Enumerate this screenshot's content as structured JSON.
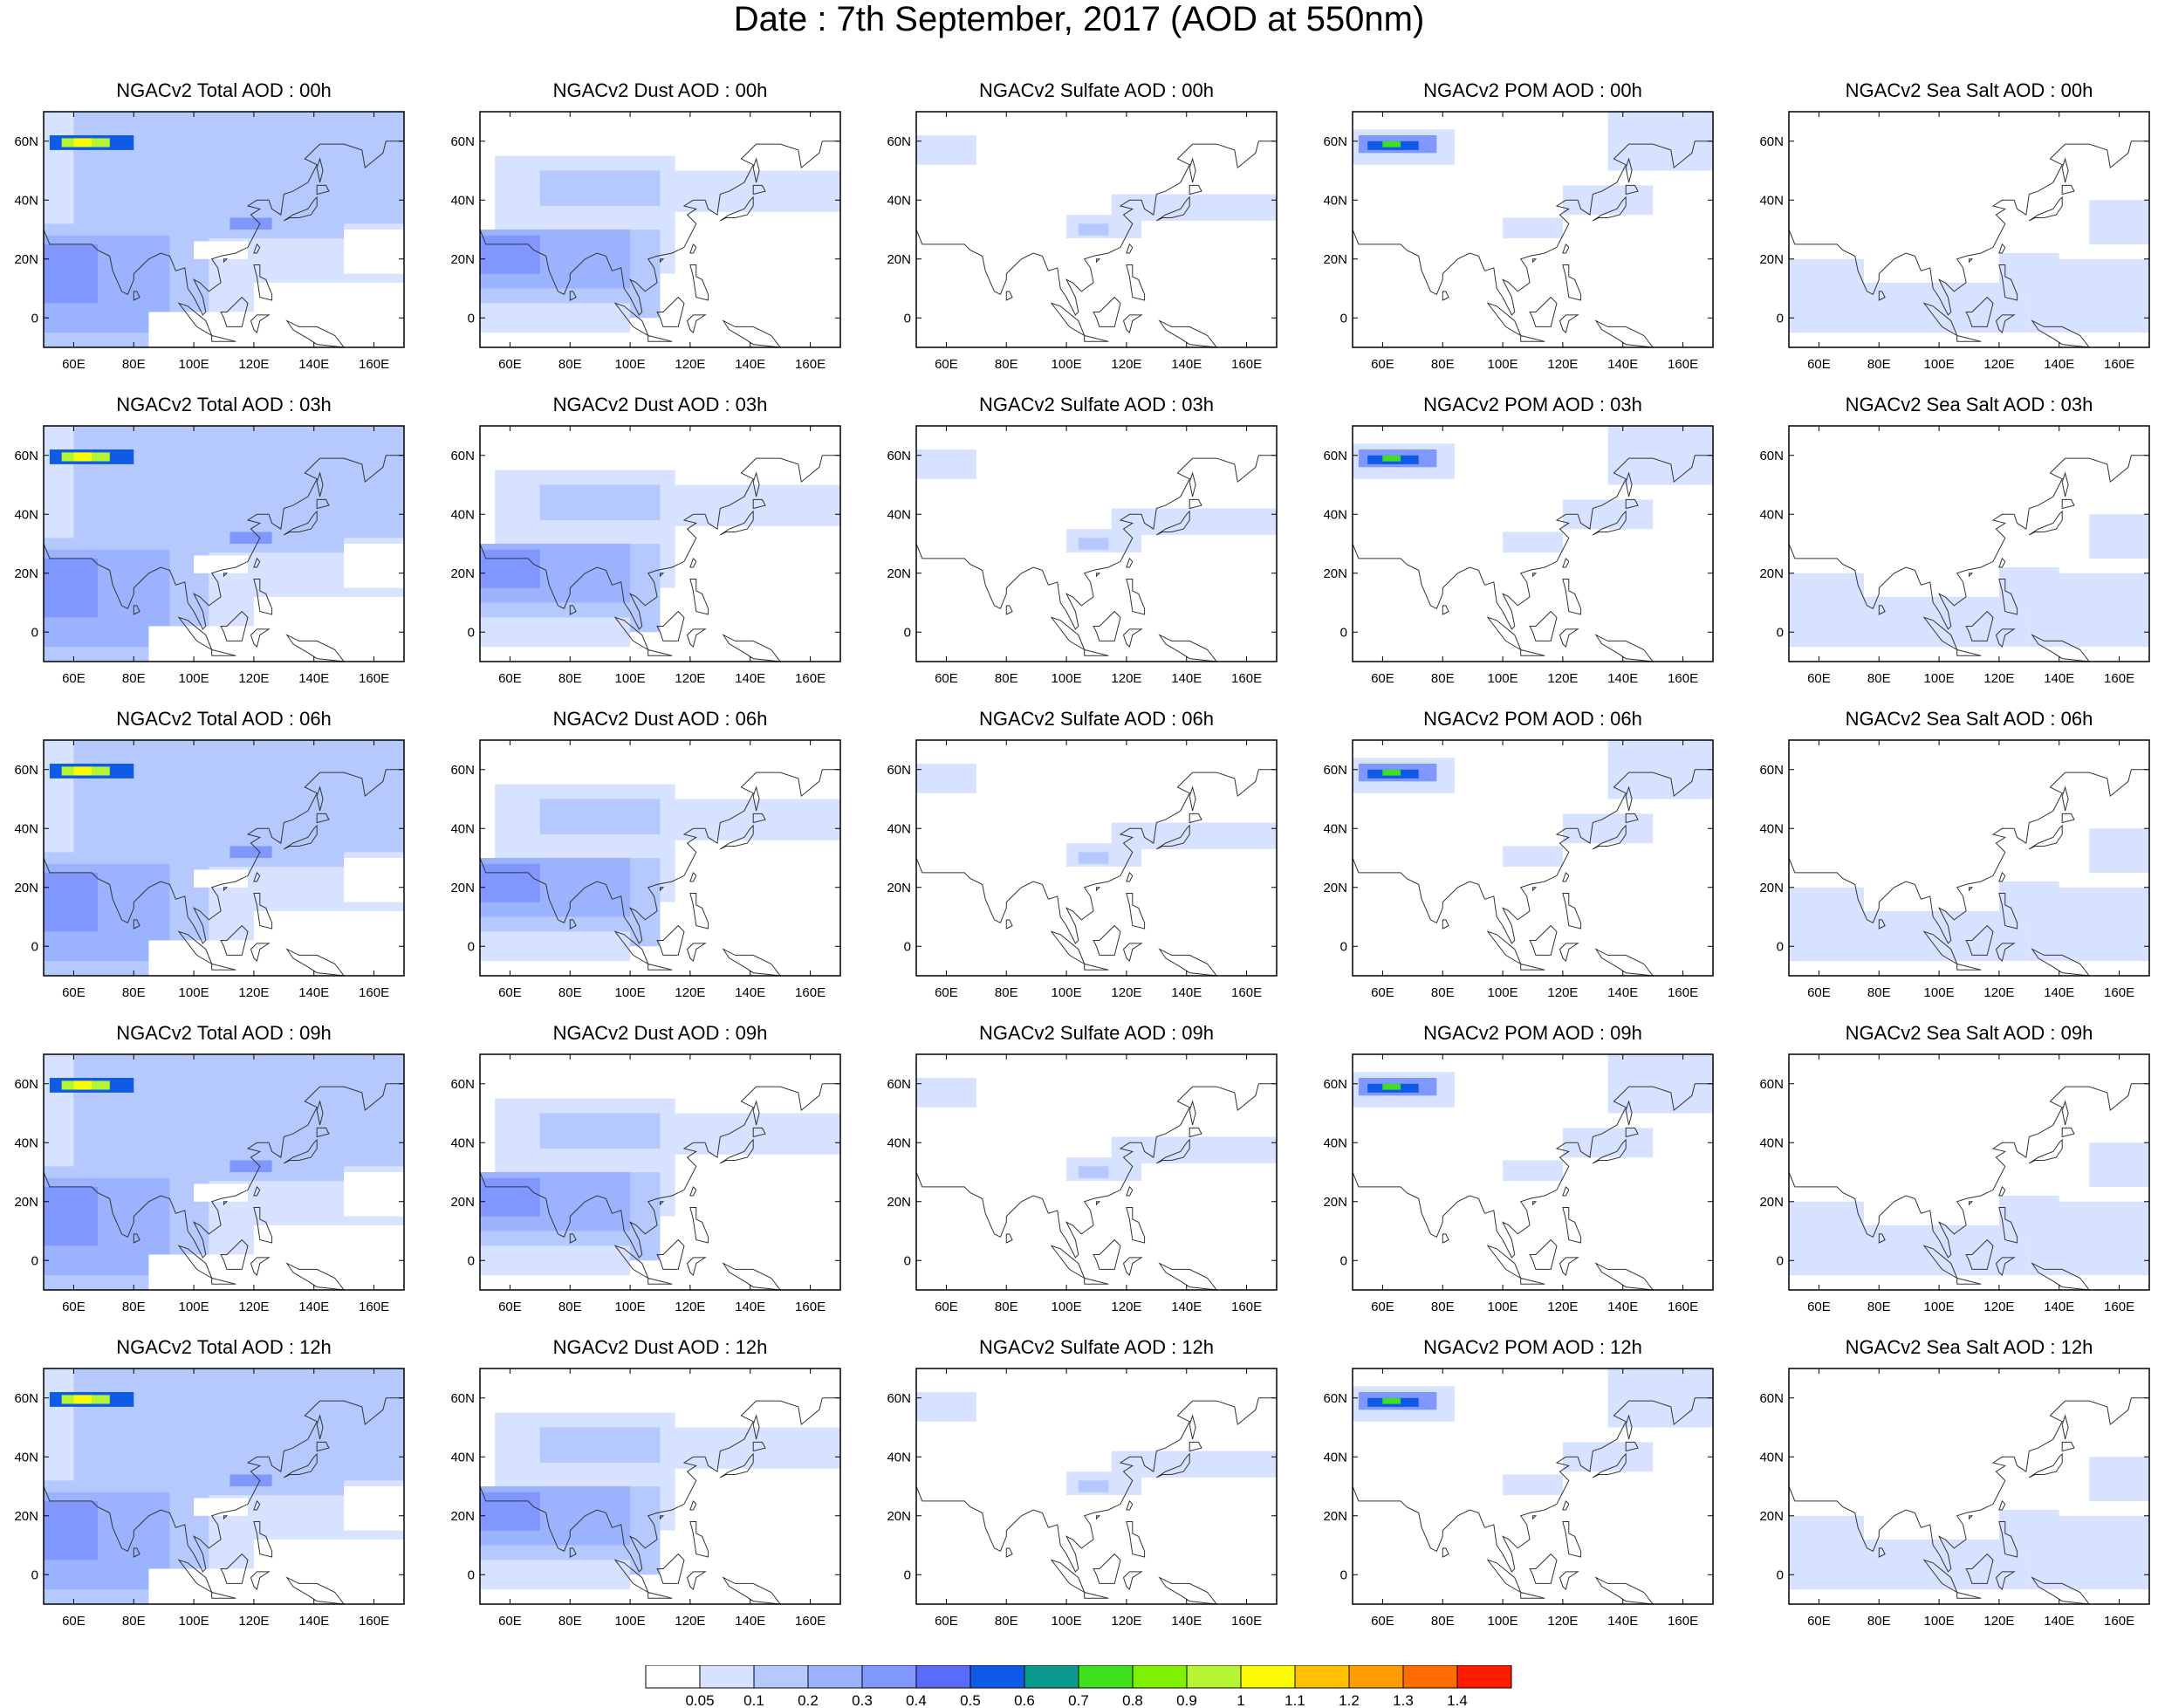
{
  "title": "Date : 7th September, 2017 (AOD at 550nm)",
  "panels": [
    [
      "NGACv2 Total AOD : 00h",
      "NGACv2 Dust AOD : 00h",
      "NGACv2 Sulfate AOD : 00h",
      "NGACv2 POM AOD : 00h",
      "NGACv2 Sea Salt AOD : 00h"
    ],
    [
      "NGACv2 Total AOD : 03h",
      "NGACv2 Dust AOD : 03h",
      "NGACv2 Sulfate AOD : 03h",
      "NGACv2 POM AOD : 03h",
      "NGACv2 Sea Salt AOD : 03h"
    ],
    [
      "NGACv2 Total AOD : 06h",
      "NGACv2 Dust AOD : 06h",
      "NGACv2 Sulfate AOD : 06h",
      "NGACv2 POM AOD : 06h",
      "NGACv2 Sea Salt AOD : 06h"
    ],
    [
      "NGACv2 Total AOD : 09h",
      "NGACv2 Dust AOD : 09h",
      "NGACv2 Sulfate AOD : 09h",
      "NGACv2 POM AOD : 09h",
      "NGACv2 Sea Salt  AOD : 09h"
    ],
    [
      "NGACv2 Total AOD  : 12h",
      "NGACv2 Dust AOD : 12h",
      "NGACv2 Sulfate AOD : 12h",
      "NGACv2 POM  AOD : 12h",
      "NGACv2 Sea Salt  AOD : 12h"
    ]
  ],
  "x_ticks": [
    "60E",
    "80E",
    "100E",
    "120E",
    "140E",
    "160E"
  ],
  "x_tick_values": [
    60,
    80,
    100,
    120,
    140,
    160
  ],
  "y_ticks": [
    "60N",
    "40N",
    "20N",
    "0"
  ],
  "y_tick_values": [
    60,
    40,
    20,
    0
  ],
  "map_extent": {
    "lon": [
      50,
      170
    ],
    "lat": [
      -10,
      70
    ]
  },
  "colorbar": {
    "labels": [
      "0.05",
      "0.1",
      "0.2",
      "0.3",
      "0.4",
      "0.5",
      "0.6",
      "0.7",
      "0.8",
      "0.9",
      "1",
      "1.1",
      "1.2",
      "1.3",
      "1.4"
    ],
    "colors": [
      "#ffffff",
      "#d6e2ff",
      "#b5c9ff",
      "#9bb3ff",
      "#7f97ff",
      "#5a6cf7",
      "#0f5be6",
      "#0b9a90",
      "#3fe01e",
      "#7ff000",
      "#b6f534",
      "#fbfb00",
      "#ffc000",
      "#ff9d00",
      "#ff6d00",
      "#ff1c00"
    ]
  }
}
